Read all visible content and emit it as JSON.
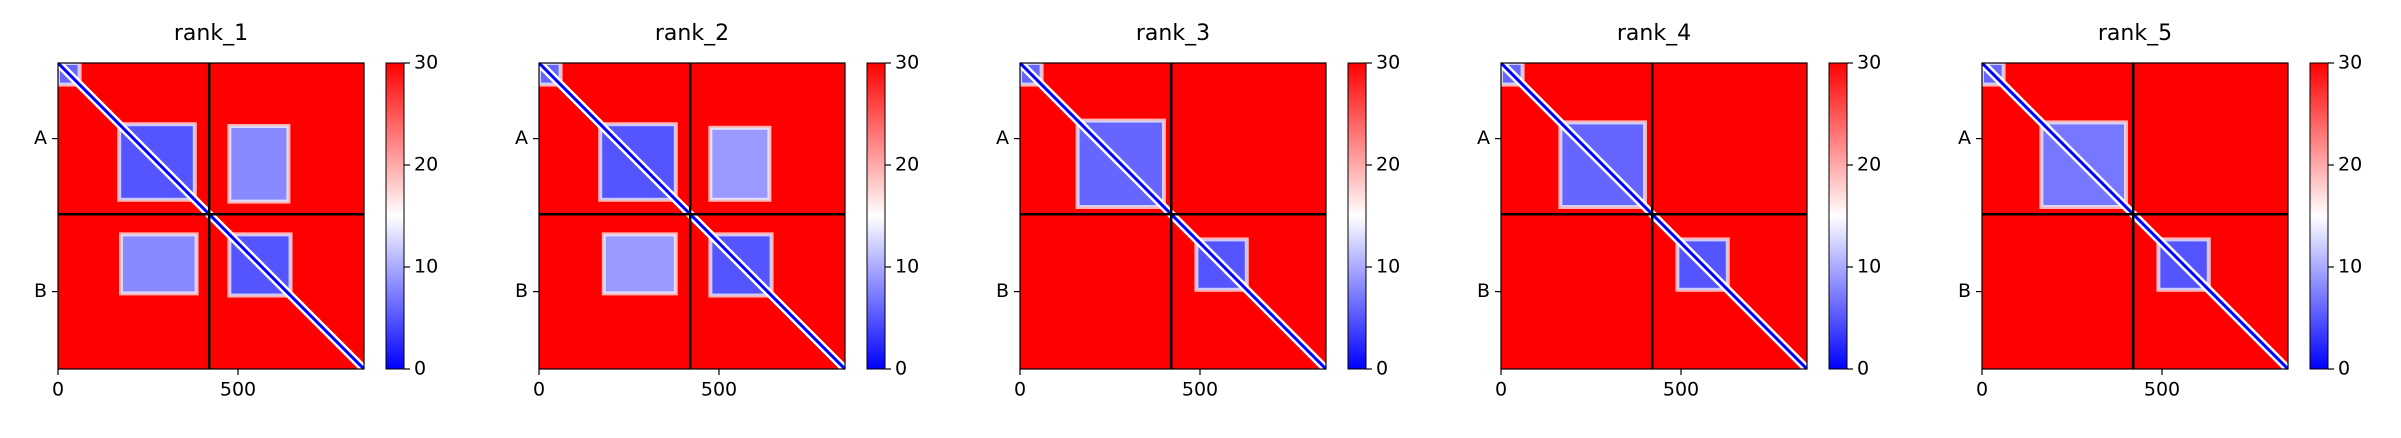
{
  "chart_data": [
    {
      "type": "heatmap",
      "title": "rank_1",
      "xlim": [
        0,
        850
      ],
      "ylim": [
        0,
        850
      ],
      "xticks": [
        0,
        500
      ],
      "yticks": [
        {
          "value": 210,
          "label": "A"
        },
        {
          "value": 635,
          "label": "B"
        }
      ],
      "chain_breaks": [
        420
      ],
      "clim": [
        0,
        30
      ],
      "cticks": [
        0,
        10,
        20,
        30
      ],
      "colors": [
        "#0000ff",
        "#ffffff",
        "#ff0000"
      ],
      "background_value": 30,
      "diagonal_value": 0,
      "blocks": [
        {
          "x": [
            0,
            60
          ],
          "y": [
            0,
            60
          ],
          "value": 6
        },
        {
          "x": [
            170,
            380
          ],
          "y": [
            170,
            380
          ],
          "value": 5
        },
        {
          "x": [
            476,
            646
          ],
          "y": [
            476,
            646
          ],
          "value": 5
        },
        {
          "x": [
            476,
            640
          ],
          "y": [
            175,
            385
          ],
          "value": 8
        },
        {
          "x": [
            175,
            385
          ],
          "y": [
            476,
            640
          ],
          "value": 8
        }
      ]
    },
    {
      "type": "heatmap",
      "title": "rank_2",
      "xlim": [
        0,
        850
      ],
      "ylim": [
        0,
        850
      ],
      "xticks": [
        0,
        500
      ],
      "yticks": [
        {
          "value": 210,
          "label": "A"
        },
        {
          "value": 635,
          "label": "B"
        }
      ],
      "chain_breaks": [
        420
      ],
      "clim": [
        0,
        30
      ],
      "cticks": [
        0,
        10,
        20,
        30
      ],
      "colors": [
        "#0000ff",
        "#ffffff",
        "#ff0000"
      ],
      "background_value": 30,
      "diagonal_value": 0,
      "blocks": [
        {
          "x": [
            0,
            60
          ],
          "y": [
            0,
            60
          ],
          "value": 6
        },
        {
          "x": [
            170,
            380
          ],
          "y": [
            170,
            380
          ],
          "value": 5
        },
        {
          "x": [
            476,
            646
          ],
          "y": [
            476,
            646
          ],
          "value": 5
        },
        {
          "x": [
            476,
            640
          ],
          "y": [
            180,
            380
          ],
          "value": 9
        },
        {
          "x": [
            180,
            380
          ],
          "y": [
            476,
            640
          ],
          "value": 9
        }
      ]
    },
    {
      "type": "heatmap",
      "title": "rank_3",
      "xlim": [
        0,
        850
      ],
      "ylim": [
        0,
        850
      ],
      "xticks": [
        0,
        500
      ],
      "yticks": [
        {
          "value": 210,
          "label": "A"
        },
        {
          "value": 635,
          "label": "B"
        }
      ],
      "chain_breaks": [
        420
      ],
      "clim": [
        0,
        30
      ],
      "cticks": [
        0,
        10,
        20,
        30
      ],
      "colors": [
        "#0000ff",
        "#ffffff",
        "#ff0000"
      ],
      "background_value": 30,
      "diagonal_value": 0,
      "blocks": [
        {
          "x": [
            0,
            60
          ],
          "y": [
            0,
            60
          ],
          "value": 6
        },
        {
          "x": [
            160,
            400
          ],
          "y": [
            160,
            400
          ],
          "value": 6
        },
        {
          "x": [
            490,
            630
          ],
          "y": [
            490,
            630
          ],
          "value": 5
        }
      ]
    },
    {
      "type": "heatmap",
      "title": "rank_4",
      "xlim": [
        0,
        850
      ],
      "ylim": [
        0,
        850
      ],
      "xticks": [
        0,
        500
      ],
      "yticks": [
        {
          "value": 210,
          "label": "A"
        },
        {
          "value": 635,
          "label": "B"
        }
      ],
      "chain_breaks": [
        420
      ],
      "clim": [
        0,
        30
      ],
      "cticks": [
        0,
        10,
        20,
        30
      ],
      "colors": [
        "#0000ff",
        "#ffffff",
        "#ff0000"
      ],
      "background_value": 30,
      "diagonal_value": 0,
      "blocks": [
        {
          "x": [
            0,
            60
          ],
          "y": [
            0,
            60
          ],
          "value": 6
        },
        {
          "x": [
            165,
            400
          ],
          "y": [
            165,
            400
          ],
          "value": 6
        },
        {
          "x": [
            490,
            630
          ],
          "y": [
            490,
            630
          ],
          "value": 5
        }
      ]
    },
    {
      "type": "heatmap",
      "title": "rank_5",
      "xlim": [
        0,
        850
      ],
      "ylim": [
        0,
        850
      ],
      "xticks": [
        0,
        500
      ],
      "yticks": [
        {
          "value": 210,
          "label": "A"
        },
        {
          "value": 635,
          "label": "B"
        }
      ],
      "chain_breaks": [
        420
      ],
      "clim": [
        0,
        30
      ],
      "cticks": [
        0,
        10,
        20,
        30
      ],
      "colors": [
        "#0000ff",
        "#ffffff",
        "#ff0000"
      ],
      "background_value": 30,
      "diagonal_value": 0,
      "blocks": [
        {
          "x": [
            0,
            60
          ],
          "y": [
            0,
            60
          ],
          "value": 6
        },
        {
          "x": [
            165,
            400
          ],
          "y": [
            165,
            400
          ],
          "value": 7
        },
        {
          "x": [
            490,
            630
          ],
          "y": [
            490,
            630
          ],
          "value": 5
        }
      ]
    }
  ]
}
